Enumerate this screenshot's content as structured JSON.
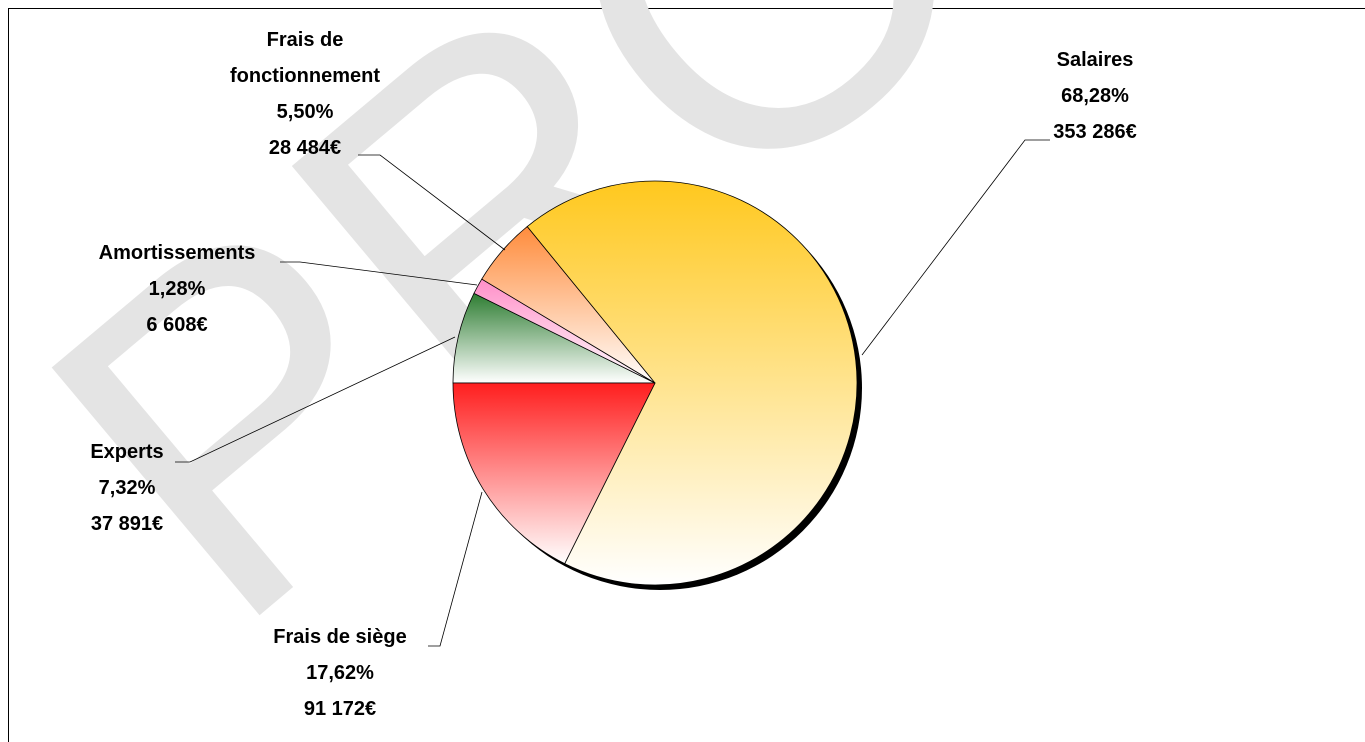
{
  "chart_data": {
    "type": "pie",
    "watermark": "PRO",
    "categories": [
      "Experts",
      "Amortissements",
      "Frais de fonctionnement",
      "Salaires",
      "Frais de siège"
    ],
    "values": [
      7.32,
      1.28,
      5.5,
      68.28,
      17.62
    ],
    "value_labels": [
      "7,32%",
      "1,28%",
      "5,50%",
      "68,28%",
      "17,62%"
    ],
    "amounts": [
      37891,
      6608,
      28484,
      353286,
      91172
    ],
    "amount_labels": [
      "37 891€",
      "6 608€",
      "28 484€",
      "353 286€",
      "91 172€"
    ],
    "colors": [
      "#2e7d32",
      "#ff8fc8",
      "#ff8c3c",
      "#ffc81e",
      "#ff1e1e"
    ]
  }
}
